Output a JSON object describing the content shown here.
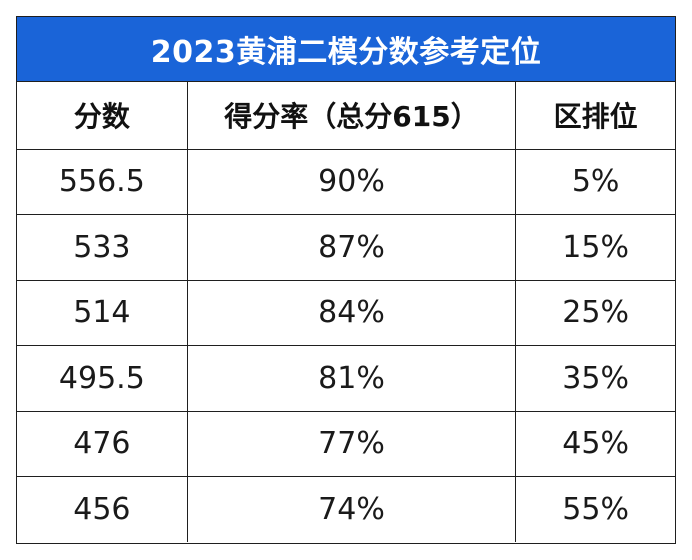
{
  "title": "2023黄浦二模分数参考定位",
  "headers": [
    "分数",
    "得分率（总分615）",
    "区排位"
  ],
  "rows": [
    [
      "556.5",
      "90%",
      "5%"
    ],
    [
      "533",
      "87%",
      "15%"
    ],
    [
      "514",
      "84%",
      "25%"
    ],
    [
      "495.5",
      "81%",
      "35%"
    ],
    [
      "476",
      "77%",
      "45%"
    ],
    [
      "456",
      "74%",
      "55%"
    ]
  ],
  "colors": {
    "title_background": "#1a64d8",
    "title_text": "#ffffff",
    "border": "#1f1f1f"
  }
}
